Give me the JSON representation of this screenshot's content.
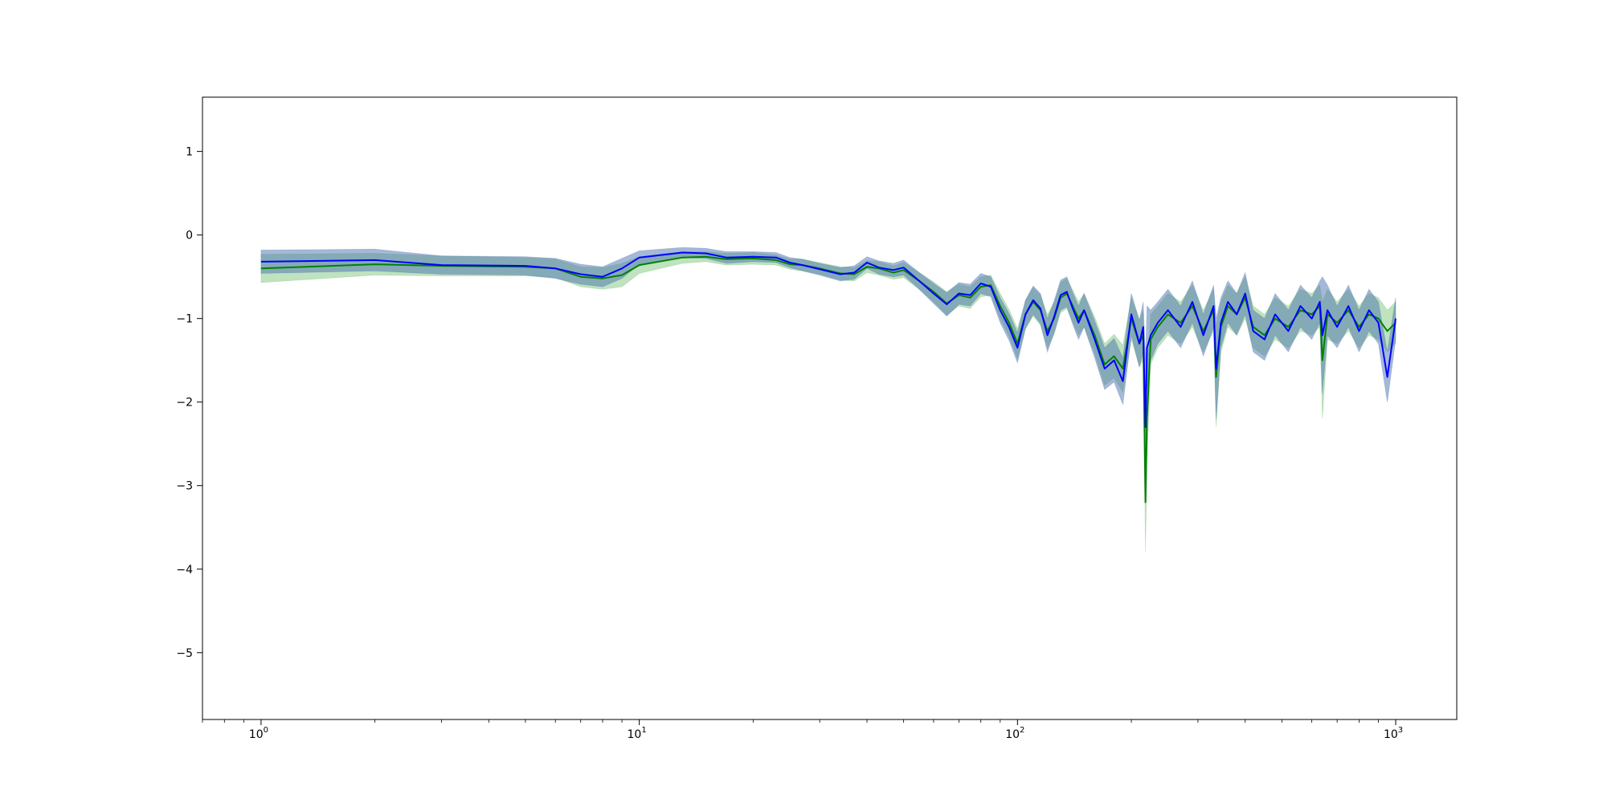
{
  "chart_data": {
    "type": "line",
    "title": "",
    "xlabel": "",
    "ylabel": "",
    "xscale": "log",
    "xlim": [
      0.7,
      1450
    ],
    "ylim": [
      -5.8,
      1.65
    ],
    "grid": false,
    "legend": "none",
    "x_ticks": [
      {
        "value": 1,
        "base": "10",
        "exp": "0"
      },
      {
        "value": 10,
        "base": "10",
        "exp": "1"
      },
      {
        "value": 100,
        "base": "10",
        "exp": "2"
      },
      {
        "value": 1000,
        "base": "10",
        "exp": "3"
      }
    ],
    "y_ticks": [
      {
        "value": 1,
        "label": "1"
      },
      {
        "value": 0,
        "label": "0"
      },
      {
        "value": -1,
        "label": "−1"
      },
      {
        "value": -2,
        "label": "−2"
      },
      {
        "value": -3,
        "label": "−3"
      },
      {
        "value": -4,
        "label": "−4"
      },
      {
        "value": -5,
        "label": "−5"
      }
    ],
    "colors": {
      "green_line": "#008000",
      "green_band": "#2ca02c",
      "blue_line": "#0000ff",
      "blue_band": "#4c72b0"
    },
    "series": [
      {
        "color": "green",
        "points": [
          [
            1,
            -0.4,
            0.17
          ],
          [
            2,
            -0.35,
            0.13
          ],
          [
            3,
            -0.37,
            0.12
          ],
          [
            5,
            -0.38,
            0.11
          ],
          [
            6,
            -0.4,
            0.11
          ],
          [
            7,
            -0.5,
            0.12
          ],
          [
            8,
            -0.52,
            0.13
          ],
          [
            9,
            -0.48,
            0.14
          ],
          [
            10,
            -0.36,
            0.1
          ],
          [
            13,
            -0.27,
            0.07
          ],
          [
            15,
            -0.26,
            0.06
          ],
          [
            17,
            -0.29,
            0.07
          ],
          [
            20,
            -0.28,
            0.07
          ],
          [
            23,
            -0.3,
            0.06
          ],
          [
            25,
            -0.35,
            0.06
          ],
          [
            27,
            -0.36,
            0.07
          ],
          [
            30,
            -0.4,
            0.07
          ],
          [
            34,
            -0.46,
            0.08
          ],
          [
            37,
            -0.47,
            0.08
          ],
          [
            40,
            -0.38,
            0.07
          ],
          [
            43,
            -0.4,
            0.08
          ],
          [
            47,
            -0.45,
            0.08
          ],
          [
            50,
            -0.42,
            0.09
          ],
          [
            55,
            -0.55,
            0.1
          ],
          [
            60,
            -0.68,
            0.12
          ],
          [
            65,
            -0.82,
            0.14
          ],
          [
            70,
            -0.72,
            0.13
          ],
          [
            75,
            -0.75,
            0.13
          ],
          [
            80,
            -0.62,
            0.12
          ],
          [
            85,
            -0.6,
            0.12
          ],
          [
            90,
            -0.85,
            0.15
          ],
          [
            95,
            -1.05,
            0.16
          ],
          [
            100,
            -1.3,
            0.18
          ],
          [
            105,
            -0.95,
            0.17
          ],
          [
            110,
            -0.8,
            0.17
          ],
          [
            115,
            -0.9,
            0.18
          ],
          [
            120,
            -1.15,
            0.2
          ],
          [
            125,
            -1.0,
            0.19
          ],
          [
            130,
            -0.75,
            0.18
          ],
          [
            135,
            -0.7,
            0.18
          ],
          [
            140,
            -0.85,
            0.19
          ],
          [
            145,
            -1.0,
            0.2
          ],
          [
            150,
            -0.9,
            0.2
          ],
          [
            160,
            -1.2,
            0.22
          ],
          [
            170,
            -1.55,
            0.25
          ],
          [
            180,
            -1.45,
            0.26
          ],
          [
            190,
            -1.6,
            0.28
          ],
          [
            200,
            -1.0,
            0.25
          ],
          [
            210,
            -1.3,
            0.28
          ],
          [
            215,
            -1.2,
            0.3
          ],
          [
            218,
            -3.2,
            0.6
          ],
          [
            220,
            -2.2,
            0.5
          ],
          [
            225,
            -1.25,
            0.3
          ],
          [
            235,
            -1.1,
            0.25
          ],
          [
            250,
            -0.95,
            0.25
          ],
          [
            270,
            -1.05,
            0.25
          ],
          [
            290,
            -0.85,
            0.25
          ],
          [
            310,
            -1.15,
            0.25
          ],
          [
            330,
            -0.9,
            0.25
          ],
          [
            335,
            -1.7,
            0.6
          ],
          [
            345,
            -1.1,
            0.3
          ],
          [
            360,
            -0.85,
            0.25
          ],
          [
            380,
            -0.95,
            0.25
          ],
          [
            400,
            -0.75,
            0.25
          ],
          [
            420,
            -1.1,
            0.25
          ],
          [
            450,
            -1.2,
            0.25
          ],
          [
            480,
            -1.0,
            0.25
          ],
          [
            520,
            -1.1,
            0.25
          ],
          [
            560,
            -0.9,
            0.25
          ],
          [
            600,
            -0.95,
            0.25
          ],
          [
            630,
            -0.85,
            0.25
          ],
          [
            640,
            -1.5,
            0.7
          ],
          [
            660,
            -0.95,
            0.3
          ],
          [
            700,
            -1.05,
            0.25
          ],
          [
            750,
            -0.9,
            0.25
          ],
          [
            800,
            -1.1,
            0.25
          ],
          [
            850,
            -0.95,
            0.25
          ],
          [
            900,
            -1.0,
            0.25
          ],
          [
            950,
            -1.15,
            0.25
          ],
          [
            1000,
            -1.05,
            0.25
          ]
        ]
      },
      {
        "color": "blue",
        "points": [
          [
            1,
            -0.32,
            0.14
          ],
          [
            2,
            -0.3,
            0.13
          ],
          [
            3,
            -0.36,
            0.11
          ],
          [
            5,
            -0.37,
            0.11
          ],
          [
            6,
            -0.4,
            0.12
          ],
          [
            7,
            -0.47,
            0.12
          ],
          [
            8,
            -0.5,
            0.12
          ],
          [
            9,
            -0.4,
            0.12
          ],
          [
            10,
            -0.27,
            0.08
          ],
          [
            13,
            -0.21,
            0.06
          ],
          [
            15,
            -0.22,
            0.06
          ],
          [
            17,
            -0.27,
            0.07
          ],
          [
            20,
            -0.26,
            0.06
          ],
          [
            23,
            -0.27,
            0.06
          ],
          [
            25,
            -0.33,
            0.06
          ],
          [
            27,
            -0.36,
            0.07
          ],
          [
            30,
            -0.41,
            0.07
          ],
          [
            34,
            -0.47,
            0.08
          ],
          [
            37,
            -0.45,
            0.08
          ],
          [
            40,
            -0.33,
            0.07
          ],
          [
            43,
            -0.39,
            0.08
          ],
          [
            47,
            -0.42,
            0.08
          ],
          [
            50,
            -0.39,
            0.09
          ],
          [
            55,
            -0.55,
            0.1
          ],
          [
            60,
            -0.7,
            0.12
          ],
          [
            65,
            -0.83,
            0.14
          ],
          [
            70,
            -0.7,
            0.13
          ],
          [
            75,
            -0.72,
            0.13
          ],
          [
            80,
            -0.58,
            0.12
          ],
          [
            85,
            -0.62,
            0.12
          ],
          [
            90,
            -0.9,
            0.15
          ],
          [
            95,
            -1.1,
            0.16
          ],
          [
            100,
            -1.35,
            0.18
          ],
          [
            105,
            -0.95,
            0.17
          ],
          [
            110,
            -0.78,
            0.17
          ],
          [
            115,
            -0.88,
            0.18
          ],
          [
            120,
            -1.2,
            0.2
          ],
          [
            125,
            -0.98,
            0.19
          ],
          [
            130,
            -0.72,
            0.18
          ],
          [
            135,
            -0.68,
            0.18
          ],
          [
            140,
            -0.88,
            0.19
          ],
          [
            145,
            -1.05,
            0.2
          ],
          [
            150,
            -0.9,
            0.2
          ],
          [
            160,
            -1.25,
            0.22
          ],
          [
            170,
            -1.6,
            0.25
          ],
          [
            180,
            -1.5,
            0.26
          ],
          [
            190,
            -1.75,
            0.28
          ],
          [
            200,
            -0.95,
            0.25
          ],
          [
            210,
            -1.3,
            0.28
          ],
          [
            215,
            -1.1,
            0.3
          ],
          [
            218,
            -2.3,
            0.8
          ],
          [
            220,
            -1.35,
            0.5
          ],
          [
            225,
            -1.2,
            0.3
          ],
          [
            235,
            -1.05,
            0.25
          ],
          [
            250,
            -0.9,
            0.25
          ],
          [
            270,
            -1.1,
            0.25
          ],
          [
            290,
            -0.8,
            0.25
          ],
          [
            310,
            -1.2,
            0.25
          ],
          [
            330,
            -0.85,
            0.25
          ],
          [
            335,
            -1.6,
            0.6
          ],
          [
            345,
            -1.05,
            0.3
          ],
          [
            360,
            -0.8,
            0.25
          ],
          [
            380,
            -0.95,
            0.25
          ],
          [
            400,
            -0.7,
            0.25
          ],
          [
            420,
            -1.15,
            0.25
          ],
          [
            450,
            -1.25,
            0.25
          ],
          [
            480,
            -0.95,
            0.25
          ],
          [
            520,
            -1.15,
            0.25
          ],
          [
            560,
            -0.85,
            0.25
          ],
          [
            600,
            -1.0,
            0.25
          ],
          [
            630,
            -0.8,
            0.25
          ],
          [
            640,
            -1.2,
            0.7
          ],
          [
            660,
            -0.9,
            0.3
          ],
          [
            700,
            -1.1,
            0.25
          ],
          [
            750,
            -0.85,
            0.25
          ],
          [
            800,
            -1.15,
            0.25
          ],
          [
            850,
            -0.9,
            0.25
          ],
          [
            900,
            -1.05,
            0.25
          ],
          [
            950,
            -1.7,
            0.3
          ],
          [
            1000,
            -1.0,
            0.25
          ]
        ]
      }
    ]
  }
}
